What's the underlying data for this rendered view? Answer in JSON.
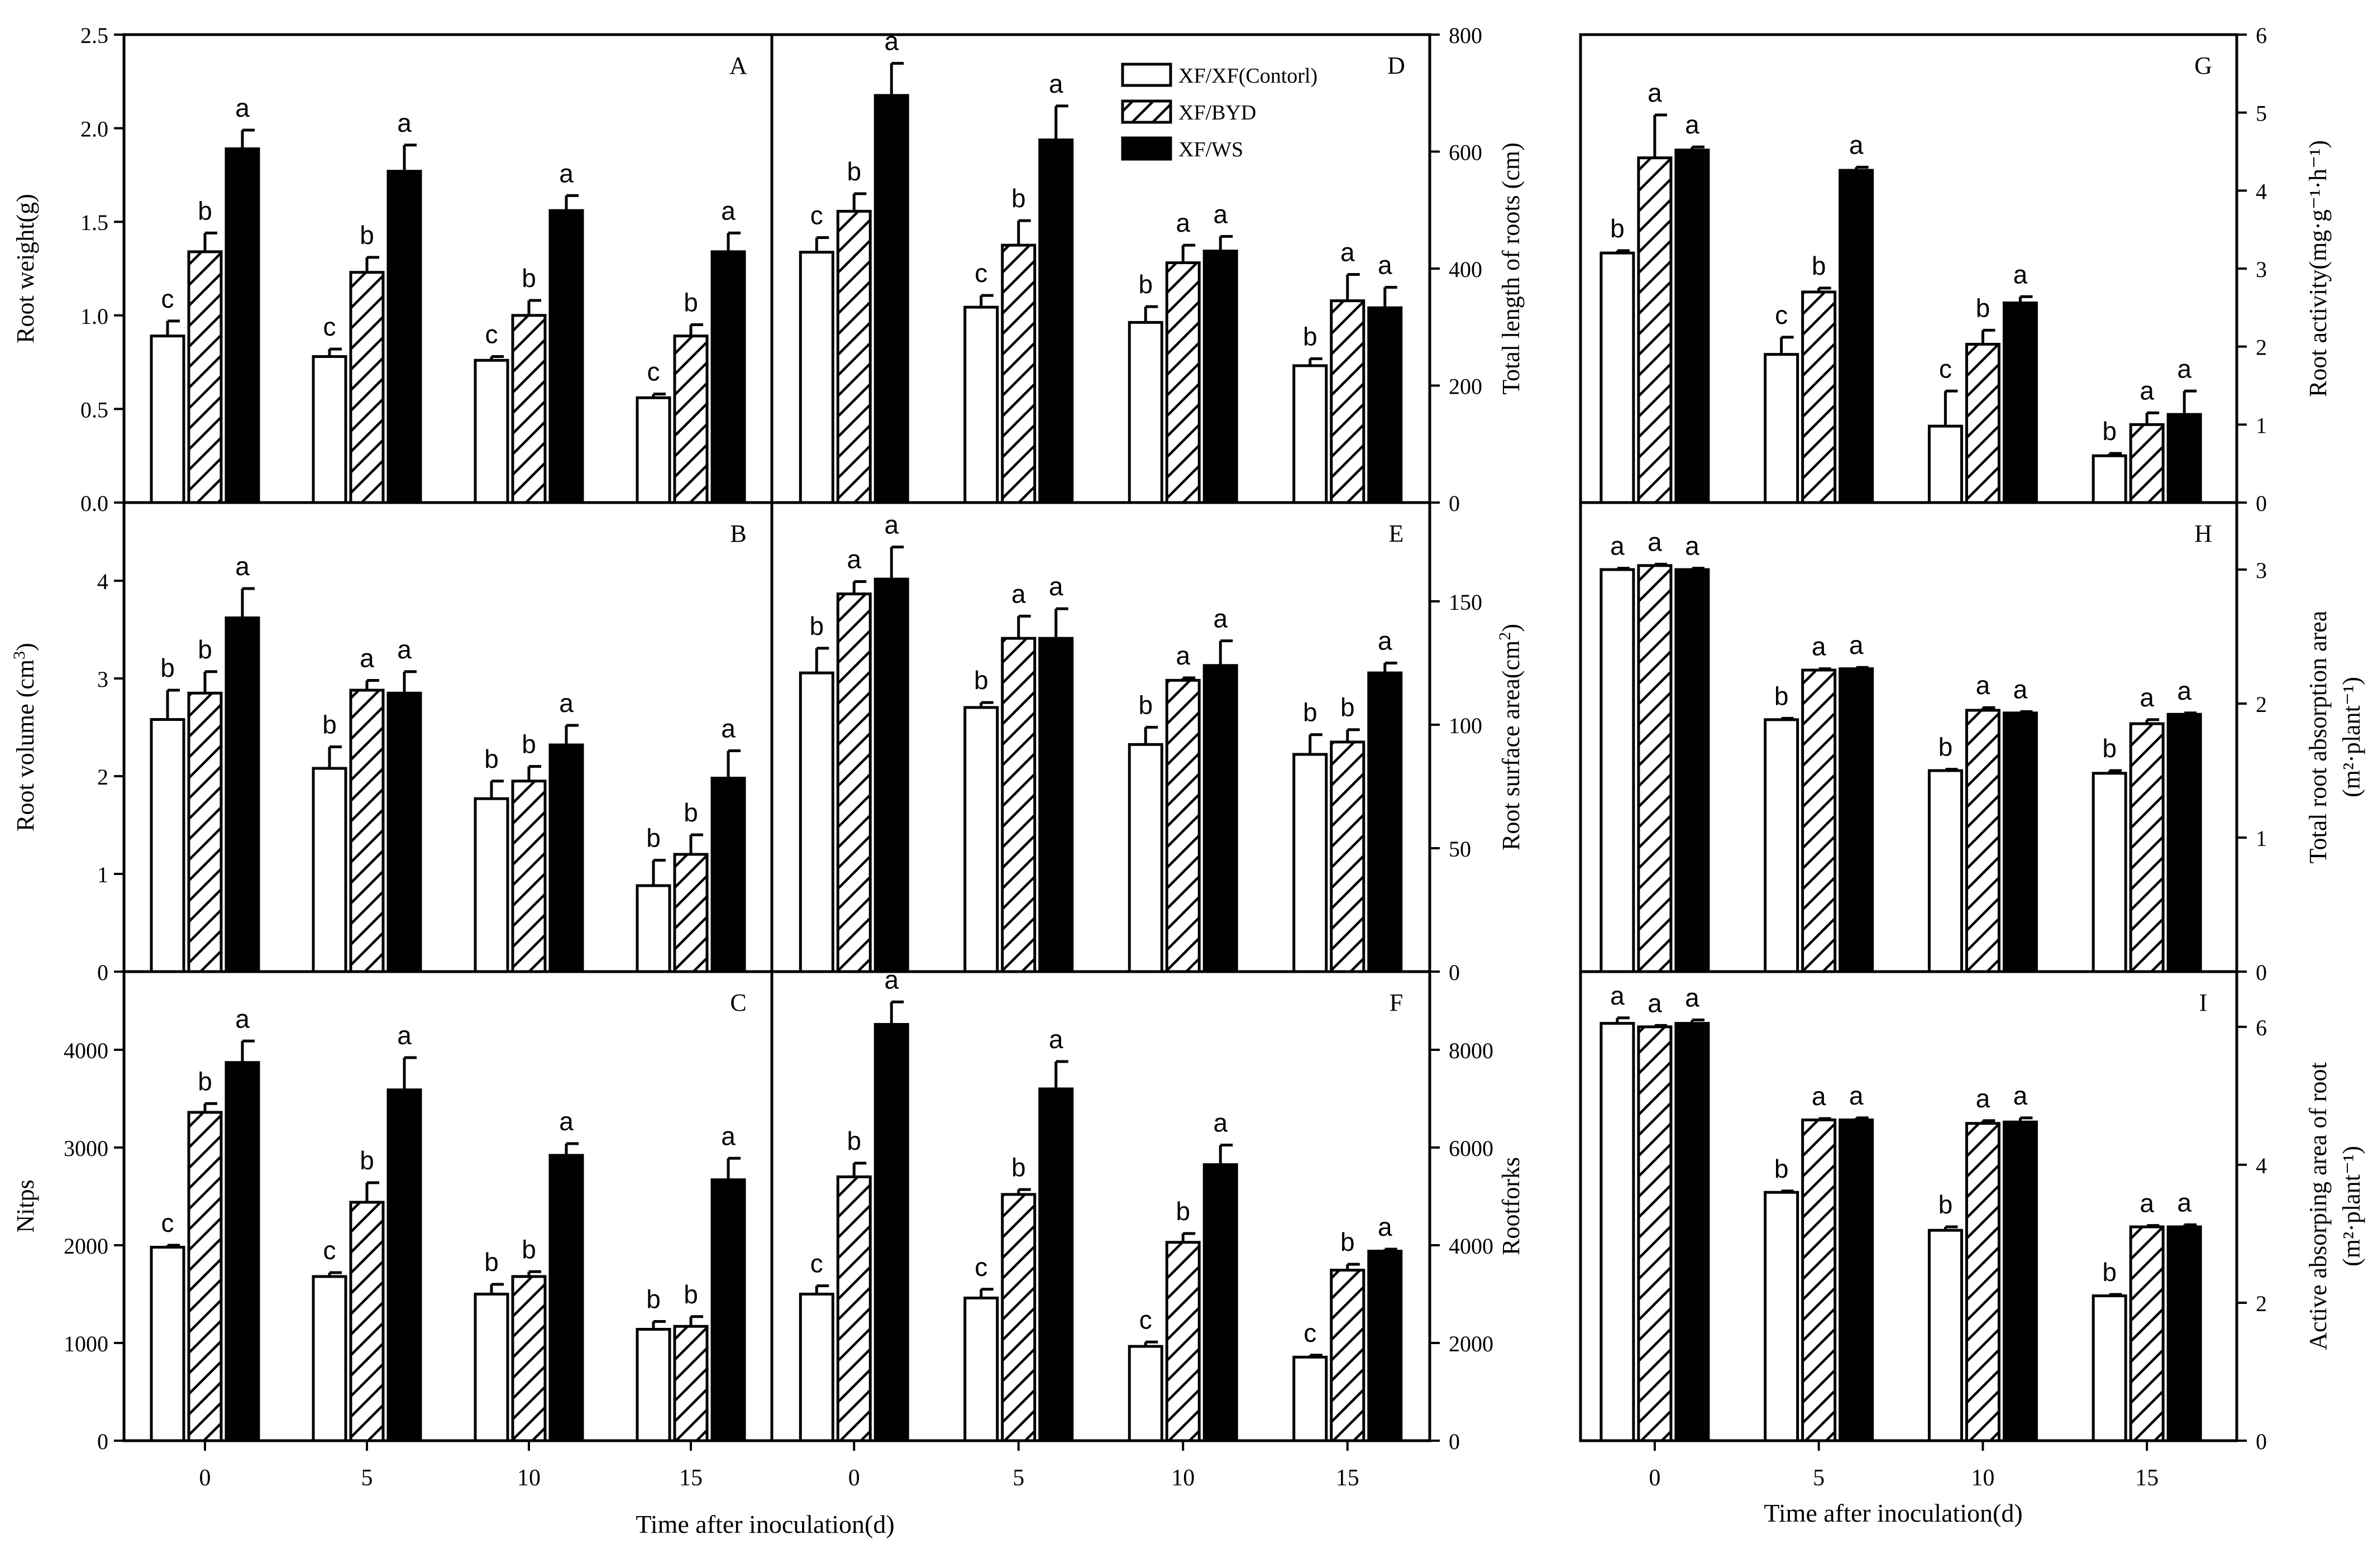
{
  "figure": {
    "xlabel": "Time after inoculation(d)",
    "categories": [
      "0",
      "5",
      "10",
      "15"
    ],
    "legend": [
      "XF/XF(Contorl)",
      "XF/BYD",
      "XF/WS"
    ],
    "colors": {
      "control": "#ffffff",
      "byd": "hatched",
      "ws": "#000000",
      "axis": "#000000"
    }
  },
  "chart_data": [
    {
      "id": "A",
      "type": "bar",
      "panel_label": "A",
      "title": "",
      "ylabel": "Root weight(g)",
      "ylabel_sup": "",
      "ylabel_tail": "",
      "ylabel_line2": "",
      "yaxis_side": "left",
      "ylim": [
        0,
        2.5
      ],
      "ticks": [
        "0.0",
        "0.5",
        "1.0",
        "1.5",
        "2.0",
        "2.5"
      ],
      "tick_values": [
        0,
        0.5,
        1.0,
        1.5,
        2.0,
        2.5
      ],
      "xlabel": "Time after inoculation(d)",
      "categories": [
        "0",
        "5",
        "10",
        "15"
      ],
      "series": [
        {
          "name": "XF/XF(Contorl)",
          "values": [
            0.89,
            0.78,
            0.76,
            0.56
          ],
          "errors": [
            0.08,
            0.04,
            0.02,
            0.02
          ],
          "letters": [
            "c",
            "c",
            "c",
            "c"
          ]
        },
        {
          "name": "XF/BYD",
          "values": [
            1.34,
            1.23,
            1.0,
            0.89
          ],
          "errors": [
            0.1,
            0.08,
            0.08,
            0.06
          ],
          "letters": [
            "b",
            "b",
            "b",
            "b"
          ]
        },
        {
          "name": "XF/WS",
          "values": [
            1.89,
            1.77,
            1.56,
            1.34
          ],
          "errors": [
            0.1,
            0.14,
            0.08,
            0.1
          ],
          "letters": [
            "a",
            "a",
            "a",
            "a"
          ]
        }
      ]
    },
    {
      "id": "B",
      "type": "bar",
      "panel_label": "B",
      "title": "",
      "ylabel": "Root volume (cm",
      "ylabel_sup": "3",
      "ylabel_tail": ")",
      "ylabel_line2": "",
      "yaxis_side": "left",
      "ylim": [
        0,
        4.8
      ],
      "ticks": [
        "0",
        "1",
        "2",
        "3",
        "4"
      ],
      "tick_values": [
        0,
        1,
        2,
        3,
        4
      ],
      "xlabel": "Time after inoculation(d)",
      "categories": [
        "0",
        "5",
        "10",
        "15"
      ],
      "series": [
        {
          "name": "XF/XF(Contorl)",
          "values": [
            2.58,
            2.08,
            1.77,
            0.88
          ],
          "errors": [
            0.3,
            0.22,
            0.18,
            0.26
          ],
          "letters": [
            "b",
            "b",
            "b",
            "b"
          ]
        },
        {
          "name": "XF/BYD",
          "values": [
            2.85,
            2.88,
            1.95,
            1.2
          ],
          "errors": [
            0.22,
            0.1,
            0.15,
            0.2
          ],
          "letters": [
            "b",
            "a",
            "b",
            "b"
          ]
        },
        {
          "name": "XF/WS",
          "values": [
            3.62,
            2.85,
            2.32,
            1.98
          ],
          "errors": [
            0.3,
            0.22,
            0.2,
            0.28
          ],
          "letters": [
            "a",
            "a",
            "a",
            "a"
          ]
        }
      ]
    },
    {
      "id": "C",
      "type": "bar",
      "panel_label": "C",
      "title": "",
      "ylabel": "Nitps",
      "ylabel_sup": "",
      "ylabel_tail": "",
      "ylabel_line2": "",
      "yaxis_side": "left",
      "ylim": [
        0,
        4800
      ],
      "ticks": [
        "0",
        "1000",
        "2000",
        "3000",
        "4000"
      ],
      "tick_values": [
        0,
        1000,
        2000,
        3000,
        4000
      ],
      "xlabel": "Time after inoculation(d)",
      "categories": [
        "0",
        "5",
        "10",
        "15"
      ],
      "series": [
        {
          "name": "XF/XF(Contorl)",
          "values": [
            1980,
            1680,
            1500,
            1140
          ],
          "errors": [
            20,
            40,
            100,
            80
          ],
          "letters": [
            "c",
            "c",
            "b",
            "b"
          ]
        },
        {
          "name": "XF/BYD",
          "values": [
            3360,
            2440,
            1680,
            1170
          ],
          "errors": [
            90,
            200,
            50,
            100
          ],
          "letters": [
            "b",
            "b",
            "b",
            "b"
          ]
        },
        {
          "name": "XF/WS",
          "values": [
            3870,
            3590,
            2920,
            2670
          ],
          "errors": [
            220,
            330,
            120,
            220
          ],
          "letters": [
            "a",
            "a",
            "a",
            "a"
          ]
        }
      ]
    },
    {
      "id": "D",
      "type": "bar",
      "panel_label": "D",
      "title": "",
      "ylabel": "Total length of roots (cm)",
      "ylabel_sup": "",
      "ylabel_tail": "",
      "ylabel_line2": "",
      "yaxis_side": "right",
      "ylim": [
        0,
        800
      ],
      "ticks": [
        "0",
        "200",
        "400",
        "600",
        "800"
      ],
      "tick_values": [
        0,
        200,
        400,
        600,
        800
      ],
      "xlabel": "Time after inoculation(d)",
      "categories": [
        "0",
        "5",
        "10",
        "15"
      ],
      "series": [
        {
          "name": "XF/XF(Contorl)",
          "values": [
            428,
            334,
            308,
            234
          ],
          "errors": [
            25,
            20,
            27,
            12
          ],
          "letters": [
            "c",
            "c",
            "b",
            "b"
          ]
        },
        {
          "name": "XF/BYD",
          "values": [
            498,
            440,
            410,
            345
          ],
          "errors": [
            30,
            42,
            30,
            45
          ],
          "letters": [
            "b",
            "b",
            "a",
            "a"
          ]
        },
        {
          "name": "XF/WS",
          "values": [
            696,
            620,
            430,
            333
          ],
          "errors": [
            55,
            58,
            25,
            35
          ],
          "letters": [
            "a",
            "a",
            "a",
            "a"
          ]
        }
      ]
    },
    {
      "id": "E",
      "type": "bar",
      "panel_label": "E",
      "title": "",
      "ylabel": "Root surface area(cm",
      "ylabel_sup": "2",
      "ylabel_tail": ")",
      "ylabel_line2": "",
      "yaxis_side": "right",
      "ylim": [
        0,
        190
      ],
      "ticks": [
        "0",
        "50",
        "100",
        "150"
      ],
      "tick_values": [
        0,
        50,
        100,
        150
      ],
      "xlabel": "Time after inoculation(d)",
      "categories": [
        "0",
        "5",
        "10",
        "15"
      ],
      "series": [
        {
          "name": "XF/XF(Contorl)",
          "values": [
            121,
            107,
            92,
            88
          ],
          "errors": [
            10,
            2,
            7,
            8
          ],
          "letters": [
            "b",
            "b",
            "b",
            "b"
          ]
        },
        {
          "name": "XF/BYD",
          "values": [
            153,
            135,
            118,
            93
          ],
          "errors": [
            5,
            9,
            1,
            5
          ],
          "letters": [
            "a",
            "a",
            "a",
            "b"
          ]
        },
        {
          "name": "XF/WS",
          "values": [
            159,
            135,
            124,
            121
          ],
          "errors": [
            13,
            12,
            10,
            4
          ],
          "letters": [
            "a",
            "a",
            "a",
            "a"
          ]
        }
      ]
    },
    {
      "id": "F",
      "type": "bar",
      "panel_label": "F",
      "title": "",
      "ylabel": "Rootforks",
      "ylabel_sup": "",
      "ylabel_tail": "",
      "ylabel_line2": "",
      "yaxis_side": "right",
      "ylim": [
        0,
        9600
      ],
      "ticks": [
        "0",
        "2000",
        "4000",
        "6000",
        "8000"
      ],
      "tick_values": [
        0,
        2000,
        4000,
        6000,
        8000
      ],
      "xlabel": "Time after inoculation(d)",
      "categories": [
        "0",
        "5",
        "10",
        "15"
      ],
      "series": [
        {
          "name": "XF/XF(Contorl)",
          "values": [
            3000,
            2920,
            1930,
            1710
          ],
          "errors": [
            170,
            180,
            90,
            40
          ],
          "letters": [
            "c",
            "c",
            "c",
            "c"
          ]
        },
        {
          "name": "XF/BYD",
          "values": [
            5400,
            5040,
            4060,
            3490
          ],
          "errors": [
            280,
            100,
            180,
            120
          ],
          "letters": [
            "b",
            "b",
            "b",
            "b"
          ]
        },
        {
          "name": "XF/WS",
          "values": [
            8520,
            7200,
            5650,
            3880
          ],
          "errors": [
            460,
            560,
            400,
            40
          ],
          "letters": [
            "a",
            "a",
            "a",
            "a"
          ]
        }
      ]
    },
    {
      "id": "G",
      "type": "bar",
      "panel_label": "G",
      "title": "",
      "ylabel": "Root activity(mg·g⁻¹·h⁻¹)",
      "ylabel_sup": "",
      "ylabel_tail": "",
      "ylabel_line2": "",
      "yaxis_side": "right",
      "ylim": [
        0,
        6
      ],
      "ticks": [
        "0",
        "1",
        "2",
        "3",
        "4",
        "5",
        "6"
      ],
      "tick_values": [
        0,
        1,
        2,
        3,
        4,
        5,
        6
      ],
      "xlabel": "Time after inoculation(d)",
      "categories": [
        "0",
        "5",
        "10",
        "15"
      ],
      "series": [
        {
          "name": "XF/XF(Contorl)",
          "values": [
            3.2,
            1.9,
            0.98,
            0.6
          ],
          "errors": [
            0.03,
            0.22,
            0.45,
            0.03
          ],
          "letters": [
            "b",
            "c",
            "c",
            "b"
          ]
        },
        {
          "name": "XF/BYD",
          "values": [
            4.42,
            2.7,
            2.03,
            1.0
          ],
          "errors": [
            0.55,
            0.05,
            0.18,
            0.15
          ],
          "letters": [
            "a",
            "b",
            "b",
            "a"
          ]
        },
        {
          "name": "XF/WS",
          "values": [
            4.52,
            4.26,
            2.56,
            1.13
          ],
          "errors": [
            0.04,
            0.04,
            0.08,
            0.3
          ],
          "letters": [
            "a",
            "a",
            "a",
            "a"
          ]
        }
      ]
    },
    {
      "id": "H",
      "type": "bar",
      "panel_label": "H",
      "title": "",
      "ylabel": "Total root absorption area",
      "ylabel_sup": "",
      "ylabel_tail": "",
      "ylabel_line2": "(m²·plant⁻¹)",
      "yaxis_side": "right",
      "ylim": [
        0,
        3.5
      ],
      "ticks": [
        "0",
        "1",
        "2",
        "3"
      ],
      "tick_values": [
        0,
        1,
        2,
        3
      ],
      "xlabel": "Time after inoculation(d)",
      "categories": [
        "0",
        "5",
        "10",
        "15"
      ],
      "series": [
        {
          "name": "XF/XF(Contorl)",
          "values": [
            3.0,
            1.88,
            1.5,
            1.48
          ],
          "errors": [
            0.01,
            0.01,
            0.01,
            0.02
          ],
          "letters": [
            "a",
            "b",
            "b",
            "b"
          ]
        },
        {
          "name": "XF/BYD",
          "values": [
            3.03,
            2.25,
            1.95,
            1.85
          ],
          "errors": [
            0.01,
            0.01,
            0.02,
            0.03
          ],
          "letters": [
            "a",
            "a",
            "a",
            "a"
          ]
        },
        {
          "name": "XF/WS",
          "values": [
            3.0,
            2.26,
            1.93,
            1.92
          ],
          "errors": [
            0.01,
            0.01,
            0.01,
            0.01
          ],
          "letters": [
            "a",
            "a",
            "a",
            "a"
          ]
        }
      ]
    },
    {
      "id": "I",
      "type": "bar",
      "panel_label": "I",
      "title": "",
      "ylabel": "Active absorping area of root",
      "ylabel_sup": "",
      "ylabel_tail": "",
      "ylabel_line2": "(m²·plant⁻¹)",
      "yaxis_side": "right",
      "ylim": [
        0,
        6.8
      ],
      "ticks": [
        "0",
        "2",
        "4",
        "6"
      ],
      "tick_values": [
        0,
        2,
        4,
        6
      ],
      "xlabel": "Time after inoculation(d)",
      "categories": [
        "0",
        "5",
        "10",
        "15"
      ],
      "series": [
        {
          "name": "XF/XF(Contorl)",
          "values": [
            6.05,
            3.6,
            3.05,
            2.1
          ],
          "errors": [
            0.08,
            0.02,
            0.05,
            0.02
          ],
          "letters": [
            "a",
            "b",
            "b",
            "b"
          ]
        },
        {
          "name": "XF/BYD",
          "values": [
            6.0,
            4.65,
            4.6,
            3.1
          ],
          "errors": [
            0.02,
            0.02,
            0.04,
            0.02
          ],
          "letters": [
            "a",
            "a",
            "a",
            "a"
          ]
        },
        {
          "name": "XF/WS",
          "values": [
            6.05,
            4.65,
            4.62,
            3.1
          ],
          "errors": [
            0.05,
            0.03,
            0.06,
            0.03
          ],
          "letters": [
            "a",
            "a",
            "a",
            "a"
          ]
        }
      ]
    }
  ]
}
